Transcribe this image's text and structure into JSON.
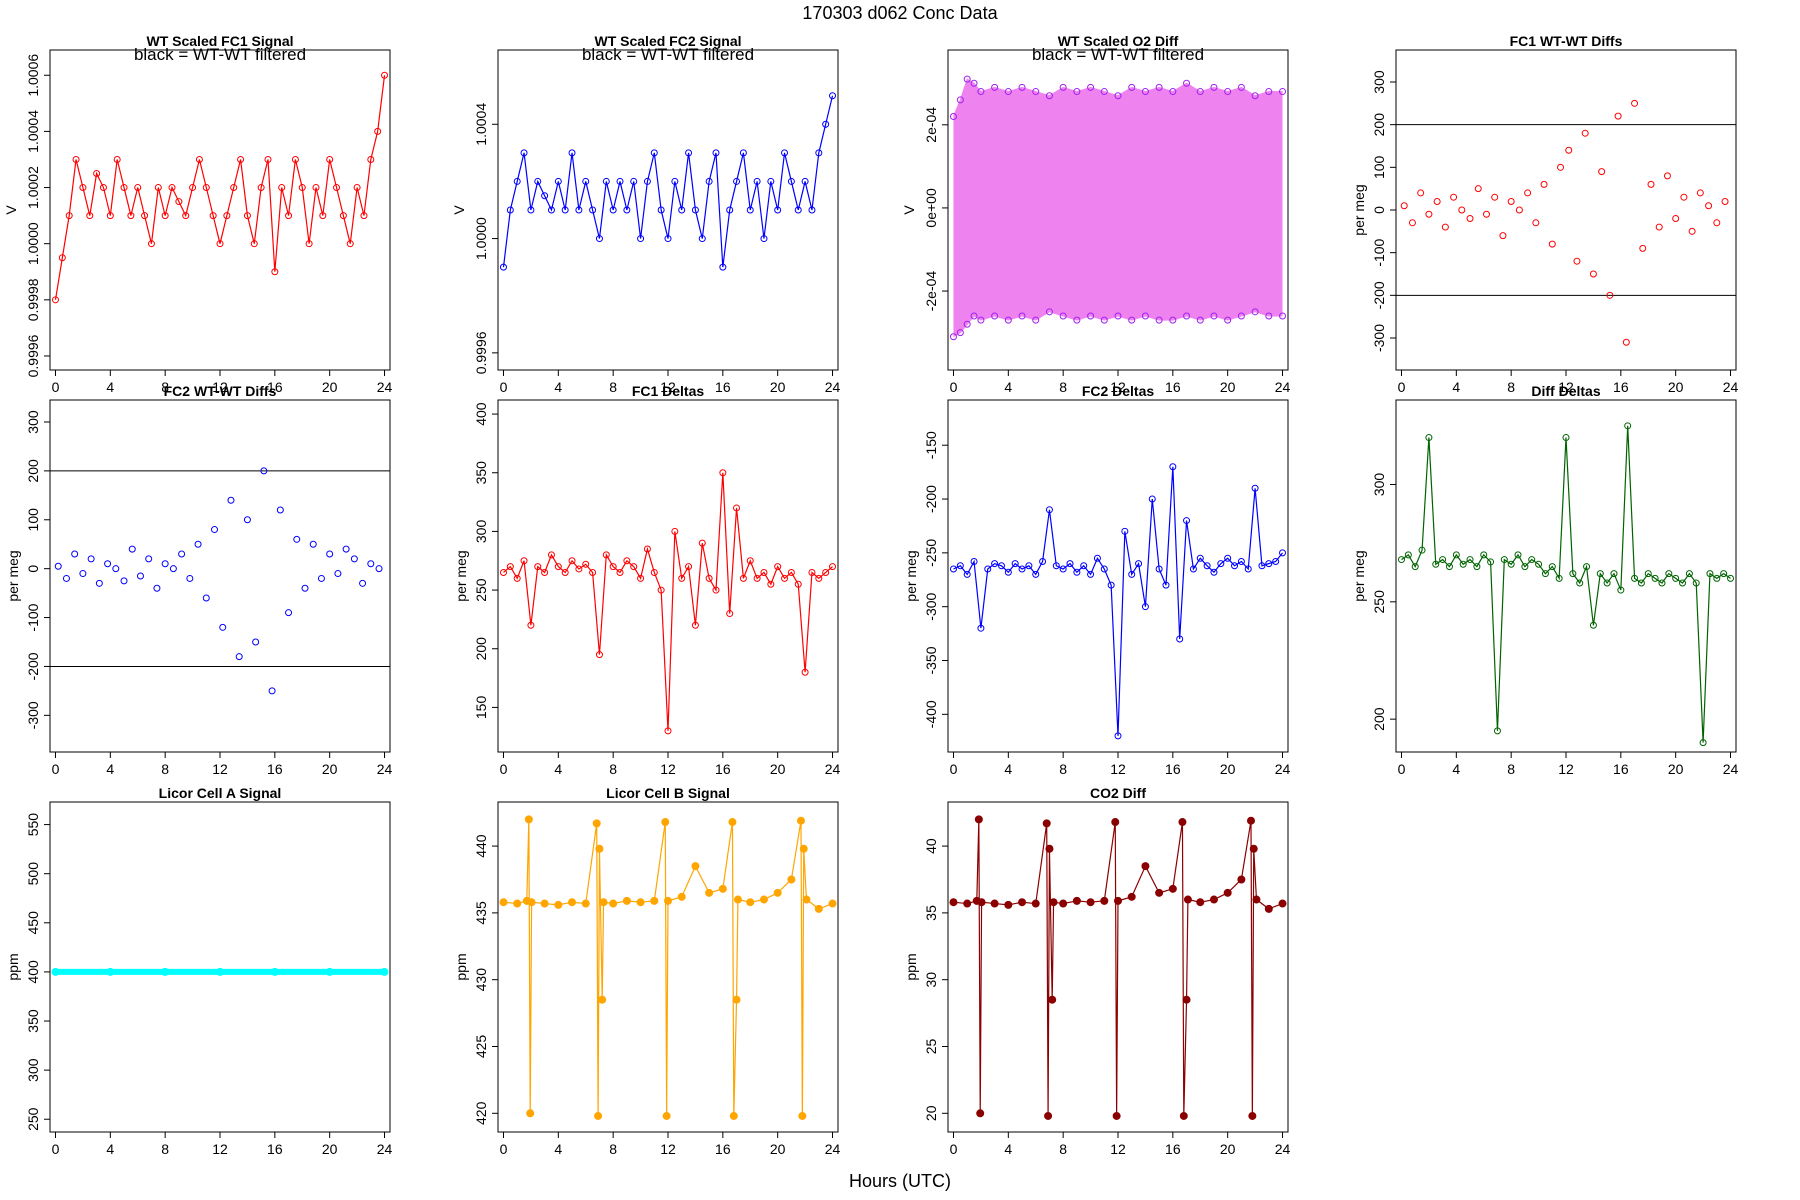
{
  "figure": {
    "supertitle": "170303    d062    Conc Data",
    "xlabel": "Hours (UTC)"
  },
  "chart_data": [
    {
      "id": "p1",
      "type": "line",
      "title": "WT Scaled FC1 Signal",
      "annotation": "black = WT-WT filtered",
      "ylabel": "V",
      "color": "#ff0000",
      "markers": "open",
      "xlim": [
        -0.4,
        24.4
      ],
      "ylim": [
        0.99955,
        1.00069
      ],
      "xticks": [
        0,
        4,
        8,
        12,
        16,
        20,
        24
      ],
      "yticks": [
        0.9996,
        0.9998,
        1.0,
        1.0002,
        1.0004,
        1.0006
      ],
      "ytick_labels": [
        "0.9996",
        "0.9998",
        "1.0000",
        "1.0002",
        "1.0004",
        "1.0006"
      ],
      "x": [
        0,
        0.5,
        1,
        1.5,
        2,
        2.5,
        3,
        3.5,
        4,
        4.5,
        5,
        5.5,
        6,
        6.5,
        7,
        7.5,
        8,
        8.5,
        9,
        9.5,
        10,
        10.5,
        11,
        11.5,
        12,
        12.5,
        13,
        13.5,
        14,
        14.5,
        15,
        15.5,
        16,
        16.5,
        17,
        17.5,
        18,
        18.5,
        19,
        19.5,
        20,
        20.5,
        21,
        21.5,
        22,
        22.5,
        23,
        23.5,
        24
      ],
      "y": [
        0.9998,
        0.99995,
        1.0001,
        1.0003,
        1.0002,
        1.0001,
        1.00025,
        1.0002,
        1.0001,
        1.0003,
        1.0002,
        1.0001,
        1.0002,
        1.0001,
        1.0,
        1.0002,
        1.0001,
        1.0002,
        1.00015,
        1.0001,
        1.0002,
        1.0003,
        1.0002,
        1.0001,
        1.0,
        1.0001,
        1.0002,
        1.0003,
        1.0001,
        1.0,
        1.0002,
        1.0003,
        0.9999,
        1.0002,
        1.0001,
        1.0003,
        1.0002,
        1.0,
        1.0002,
        1.0001,
        1.0003,
        1.0002,
        1.0001,
        1.0,
        1.0002,
        1.0001,
        1.0003,
        1.0004,
        1.0006
      ],
      "filled_band": false
    },
    {
      "id": "p2",
      "type": "line",
      "title": "WT Scaled FC2 Signal",
      "annotation": "black = WT-WT filtered",
      "ylabel": "V",
      "color": "#0000ff",
      "markers": "open",
      "xlim": [
        -0.4,
        24.4
      ],
      "ylim": [
        0.99954,
        1.00066
      ],
      "xticks": [
        0,
        4,
        8,
        12,
        16,
        20,
        24
      ],
      "yticks": [
        0.9996,
        1.0,
        1.0004
      ],
      "ytick_labels": [
        "0.9996",
        "1.0000",
        "1.0004"
      ],
      "x": [
        0,
        0.5,
        1,
        1.5,
        2,
        2.5,
        3,
        3.5,
        4,
        4.5,
        5,
        5.5,
        6,
        6.5,
        7,
        7.5,
        8,
        8.5,
        9,
        9.5,
        10,
        10.5,
        11,
        11.5,
        12,
        12.5,
        13,
        13.5,
        14,
        14.5,
        15,
        15.5,
        16,
        16.5,
        17,
        17.5,
        18,
        18.5,
        19,
        19.5,
        20,
        20.5,
        21,
        21.5,
        22,
        22.5,
        23,
        23.5,
        24
      ],
      "y": [
        0.9999,
        1.0001,
        1.0002,
        1.0003,
        1.0001,
        1.0002,
        1.00015,
        1.0001,
        1.0002,
        1.0001,
        1.0003,
        1.0001,
        1.0002,
        1.0001,
        1.0,
        1.0002,
        1.0001,
        1.0002,
        1.0001,
        1.0002,
        1.0,
        1.0002,
        1.0003,
        1.0001,
        1.0,
        1.0002,
        1.0001,
        1.0003,
        1.0001,
        1.0,
        1.0002,
        1.0003,
        0.9999,
        1.0001,
        1.0002,
        1.0003,
        1.0001,
        1.0002,
        1.0,
        1.0002,
        1.0001,
        1.0003,
        1.0002,
        1.0001,
        1.0002,
        1.0001,
        1.0003,
        1.0004,
        1.0005
      ],
      "filled_band": false
    },
    {
      "id": "p3",
      "type": "area",
      "title": "WT Scaled O2 Diff",
      "annotation": "black = WT-WT filtered",
      "ylabel": "V",
      "color": "#ee82ee",
      "marker_color": "#a020f0",
      "markers": "open",
      "xlim": [
        -0.4,
        24.4
      ],
      "ylim": [
        -0.00039,
        0.00038
      ],
      "xticks": [
        0,
        4,
        8,
        12,
        16,
        20,
        24
      ],
      "yticks": [
        -0.0002,
        0.0,
        0.0002
      ],
      "ytick_labels": [
        "-2e-04",
        "0e+00",
        "2e-04"
      ],
      "x": [
        0,
        0.5,
        1,
        1.5,
        2,
        3,
        4,
        5,
        6,
        7,
        8,
        9,
        10,
        11,
        12,
        13,
        14,
        15,
        16,
        17,
        18,
        19,
        20,
        21,
        22,
        23,
        24
      ],
      "y_upper": [
        0.00022,
        0.00026,
        0.00031,
        0.0003,
        0.00028,
        0.00029,
        0.00028,
        0.00029,
        0.00028,
        0.00027,
        0.00029,
        0.00028,
        0.00029,
        0.00028,
        0.00027,
        0.00029,
        0.00028,
        0.00029,
        0.00028,
        0.0003,
        0.00028,
        0.00029,
        0.00028,
        0.00029,
        0.00027,
        0.00028,
        0.00028
      ],
      "y_lower": [
        -0.00031,
        -0.0003,
        -0.00028,
        -0.00026,
        -0.00027,
        -0.00026,
        -0.00027,
        -0.00026,
        -0.00027,
        -0.00025,
        -0.00026,
        -0.00027,
        -0.00026,
        -0.00027,
        -0.00026,
        -0.00027,
        -0.00026,
        -0.00027,
        -0.00027,
        -0.00026,
        -0.00027,
        -0.00026,
        -0.00027,
        -0.00026,
        -0.00025,
        -0.00026,
        -0.00026
      ],
      "filled_band": true
    },
    {
      "id": "p4",
      "type": "scatter",
      "title": "FC1 WT-WT Diffs",
      "ylabel": "per meg",
      "color": "#ff0000",
      "markers": "open",
      "xlim": [
        -0.4,
        24.4
      ],
      "ylim": [
        -375,
        375
      ],
      "xticks": [
        0,
        4,
        8,
        12,
        16,
        20,
        24
      ],
      "yticks": [
        -300,
        -200,
        -100,
        0,
        100,
        200,
        300
      ],
      "hlines": [
        200,
        -200
      ],
      "x": [
        0.2,
        0.8,
        1.4,
        2.0,
        2.6,
        3.2,
        3.8,
        4.4,
        5.0,
        5.6,
        6.2,
        6.8,
        7.4,
        8.0,
        8.6,
        9.2,
        9.8,
        10.4,
        11.0,
        11.6,
        12.2,
        12.8,
        13.4,
        14.0,
        14.6,
        15.2,
        15.8,
        16.4,
        17.0,
        17.6,
        18.2,
        18.8,
        19.4,
        20.0,
        20.6,
        21.2,
        21.8,
        22.4,
        23.0,
        23.6
      ],
      "y": [
        10,
        -30,
        40,
        -10,
        20,
        -40,
        30,
        0,
        -20,
        50,
        -10,
        30,
        -60,
        20,
        0,
        40,
        -30,
        60,
        -80,
        100,
        140,
        -120,
        180,
        -150,
        90,
        -200,
        220,
        -310,
        250,
        -90,
        60,
        -40,
        80,
        -20,
        30,
        -50,
        40,
        10,
        -30,
        20
      ]
    },
    {
      "id": "p5",
      "type": "scatter",
      "title": "FC2 WT-WT Diffs",
      "ylabel": "per meg",
      "color": "#0000ff",
      "markers": "open",
      "xlim": [
        -0.4,
        24.4
      ],
      "ylim": [
        -375,
        345
      ],
      "xticks": [
        0,
        4,
        8,
        12,
        16,
        20,
        24
      ],
      "yticks": [
        -300,
        -200,
        -100,
        0,
        100,
        200,
        300
      ],
      "hlines": [
        200,
        -200
      ],
      "x": [
        0.2,
        0.8,
        1.4,
        2.0,
        2.6,
        3.2,
        3.8,
        4.4,
        5.0,
        5.6,
        6.2,
        6.8,
        7.4,
        8.0,
        8.6,
        9.2,
        9.8,
        10.4,
        11.0,
        11.6,
        12.2,
        12.8,
        13.4,
        14.0,
        14.6,
        15.2,
        15.8,
        16.4,
        17.0,
        17.6,
        18.2,
        18.8,
        19.4,
        20.0,
        20.6,
        21.2,
        21.8,
        22.4,
        23.0,
        23.6
      ],
      "y": [
        5,
        -20,
        30,
        -10,
        20,
        -30,
        10,
        0,
        -25,
        40,
        -15,
        20,
        -40,
        10,
        0,
        30,
        -20,
        50,
        -60,
        80,
        -120,
        140,
        -180,
        100,
        -150,
        200,
        -250,
        120,
        -90,
        60,
        -40,
        50,
        -20,
        30,
        -10,
        40,
        20,
        -30,
        10,
        0
      ]
    },
    {
      "id": "p6",
      "type": "line",
      "title": "FC1 Deltas",
      "ylabel": "per meg",
      "color": "#ff0000",
      "markers": "open",
      "xlim": [
        -0.4,
        24.4
      ],
      "ylim": [
        112,
        412
      ],
      "xticks": [
        0,
        4,
        8,
        12,
        16,
        20,
        24
      ],
      "yticks": [
        150,
        200,
        250,
        300,
        350,
        400
      ],
      "x": [
        0,
        0.5,
        1,
        1.5,
        2,
        2.5,
        3,
        3.5,
        4,
        4.5,
        5,
        5.5,
        6,
        6.5,
        7,
        7.5,
        8,
        8.5,
        9,
        9.5,
        10,
        10.5,
        11,
        11.5,
        12,
        12.5,
        13,
        13.5,
        14,
        14.5,
        15,
        15.5,
        16,
        16.5,
        17,
        17.5,
        18,
        18.5,
        19,
        19.5,
        20,
        20.5,
        21,
        21.5,
        22,
        22.5,
        23,
        23.5,
        24
      ],
      "y": [
        265,
        270,
        260,
        275,
        220,
        270,
        265,
        280,
        270,
        265,
        275,
        268,
        272,
        265,
        195,
        280,
        270,
        265,
        275,
        270,
        260,
        285,
        265,
        250,
        130,
        300,
        260,
        270,
        220,
        290,
        260,
        250,
        350,
        230,
        320,
        260,
        275,
        260,
        265,
        255,
        270,
        260,
        265,
        255,
        180,
        265,
        260,
        265,
        270
      ]
    },
    {
      "id": "p7",
      "type": "line",
      "title": "FC2 Deltas",
      "ylabel": "per meg",
      "color": "#0000ff",
      "markers": "open",
      "xlim": [
        -0.4,
        24.4
      ],
      "ylim": [
        -435,
        -108
      ],
      "xticks": [
        0,
        4,
        8,
        12,
        16,
        20,
        24
      ],
      "yticks": [
        -400,
        -350,
        -300,
        -250,
        -200,
        -150
      ],
      "x": [
        0,
        0.5,
        1,
        1.5,
        2,
        2.5,
        3,
        3.5,
        4,
        4.5,
        5,
        5.5,
        6,
        6.5,
        7,
        7.5,
        8,
        8.5,
        9,
        9.5,
        10,
        10.5,
        11,
        11.5,
        12,
        12.5,
        13,
        13.5,
        14,
        14.5,
        15,
        15.5,
        16,
        16.5,
        17,
        17.5,
        18,
        18.5,
        19,
        19.5,
        20,
        20.5,
        21,
        21.5,
        22,
        22.5,
        23,
        23.5,
        24
      ],
      "y": [
        -265,
        -262,
        -270,
        -258,
        -320,
        -265,
        -260,
        -262,
        -268,
        -260,
        -265,
        -262,
        -270,
        -258,
        -210,
        -262,
        -265,
        -260,
        -268,
        -262,
        -270,
        -255,
        -265,
        -280,
        -420,
        -230,
        -270,
        -260,
        -300,
        -200,
        -265,
        -280,
        -170,
        -330,
        -220,
        -265,
        -255,
        -262,
        -268,
        -260,
        -255,
        -262,
        -258,
        -265,
        -190,
        -262,
        -260,
        -258,
        -250
      ]
    },
    {
      "id": "p8",
      "type": "line",
      "title": "Diff Deltas",
      "ylabel": "per meg",
      "color": "#006400",
      "markers": "open",
      "xlim": [
        -0.4,
        24.4
      ],
      "ylim": [
        186,
        336
      ],
      "xticks": [
        0,
        4,
        8,
        12,
        16,
        20,
        24
      ],
      "yticks": [
        200,
        250,
        300
      ],
      "x": [
        0,
        0.5,
        1,
        1.5,
        2,
        2.5,
        3,
        3.5,
        4,
        4.5,
        5,
        5.5,
        6,
        6.5,
        7,
        7.5,
        8,
        8.5,
        9,
        9.5,
        10,
        10.5,
        11,
        11.5,
        12,
        12.5,
        13,
        13.5,
        14,
        14.5,
        15,
        15.5,
        16,
        16.5,
        17,
        17.5,
        18,
        18.5,
        19,
        19.5,
        20,
        20.5,
        21,
        21.5,
        22,
        22.5,
        23,
        23.5,
        24
      ],
      "y": [
        268,
        270,
        265,
        272,
        320,
        266,
        268,
        265,
        270,
        266,
        268,
        265,
        270,
        267,
        195,
        268,
        266,
        270,
        265,
        268,
        266,
        262,
        265,
        260,
        320,
        262,
        258,
        265,
        240,
        262,
        258,
        262,
        255,
        325,
        260,
        258,
        262,
        260,
        258,
        262,
        260,
        258,
        262,
        258,
        190,
        262,
        260,
        262,
        260
      ]
    },
    {
      "id": "p9",
      "type": "line",
      "title": "Licor Cell A Signal",
      "ylabel": "ppm",
      "color": "#00ffff",
      "markers": "filled",
      "xlim": [
        -0.4,
        24.4
      ],
      "ylim": [
        237,
        573
      ],
      "xticks": [
        0,
        4,
        8,
        12,
        16,
        20,
        24
      ],
      "yticks": [
        250,
        300,
        350,
        400,
        450,
        500,
        550
      ],
      "x": [
        0,
        4,
        8,
        12,
        16,
        20,
        24
      ],
      "y": [
        400,
        400,
        400,
        400,
        400,
        400,
        400
      ]
    },
    {
      "id": "p10",
      "type": "line",
      "title": "Licor Cell B Signal",
      "ylabel": "ppm",
      "color": "#ffa500",
      "markers": "filled",
      "xlim": [
        -0.4,
        24.4
      ],
      "ylim": [
        418.6,
        443.3
      ],
      "xticks": [
        0,
        4,
        8,
        12,
        16,
        20,
        24
      ],
      "yticks": [
        420,
        425,
        430,
        435,
        440
      ],
      "x": [
        0,
        1,
        1.7,
        1.85,
        1.95,
        2.05,
        3,
        4,
        5,
        6,
        6.8,
        6.9,
        7.0,
        7.2,
        7.3,
        8,
        9,
        10,
        11,
        11.8,
        11.9,
        12.0,
        13,
        14,
        15,
        16,
        16.7,
        16.8,
        17.0,
        17.1,
        18,
        19,
        20,
        21,
        21.7,
        21.8,
        21.9,
        22.1,
        23,
        24
      ],
      "y": [
        435.8,
        435.7,
        435.9,
        442,
        420,
        435.8,
        435.7,
        435.6,
        435.8,
        435.7,
        441.7,
        419.8,
        439.8,
        428.5,
        435.8,
        435.7,
        435.9,
        435.8,
        435.9,
        441.8,
        419.8,
        435.9,
        436.2,
        438.5,
        436.5,
        436.8,
        441.8,
        419.8,
        428.5,
        436,
        435.8,
        436,
        436.5,
        437.5,
        441.9,
        419.8,
        439.8,
        436,
        435.3,
        435.7
      ]
    },
    {
      "id": "p11",
      "type": "line",
      "title": "CO2 Diff",
      "ylabel": "ppm",
      "color": "#8b0000",
      "markers": "filled",
      "xlim": [
        -0.4,
        24.4
      ],
      "ylim": [
        18.6,
        43.3
      ],
      "xticks": [
        0,
        4,
        8,
        12,
        16,
        20,
        24
      ],
      "yticks": [
        20,
        25,
        30,
        35,
        40
      ],
      "x": [
        0,
        1,
        1.7,
        1.85,
        1.95,
        2.05,
        3,
        4,
        5,
        6,
        6.8,
        6.9,
        7.0,
        7.2,
        7.3,
        8,
        9,
        10,
        11,
        11.8,
        11.9,
        12.0,
        13,
        14,
        15,
        16,
        16.7,
        16.8,
        17.0,
        17.1,
        18,
        19,
        20,
        21,
        21.7,
        21.8,
        21.9,
        22.1,
        23,
        24
      ],
      "y": [
        35.8,
        35.7,
        35.9,
        42,
        20,
        35.8,
        35.7,
        35.6,
        35.8,
        35.7,
        41.7,
        19.8,
        39.8,
        28.5,
        35.8,
        35.7,
        35.9,
        35.8,
        35.9,
        41.8,
        19.8,
        35.9,
        36.2,
        38.5,
        36.5,
        36.8,
        41.8,
        19.8,
        28.5,
        36,
        35.8,
        36,
        36.5,
        37.5,
        41.9,
        19.8,
        39.8,
        36,
        35.3,
        35.7
      ]
    }
  ]
}
